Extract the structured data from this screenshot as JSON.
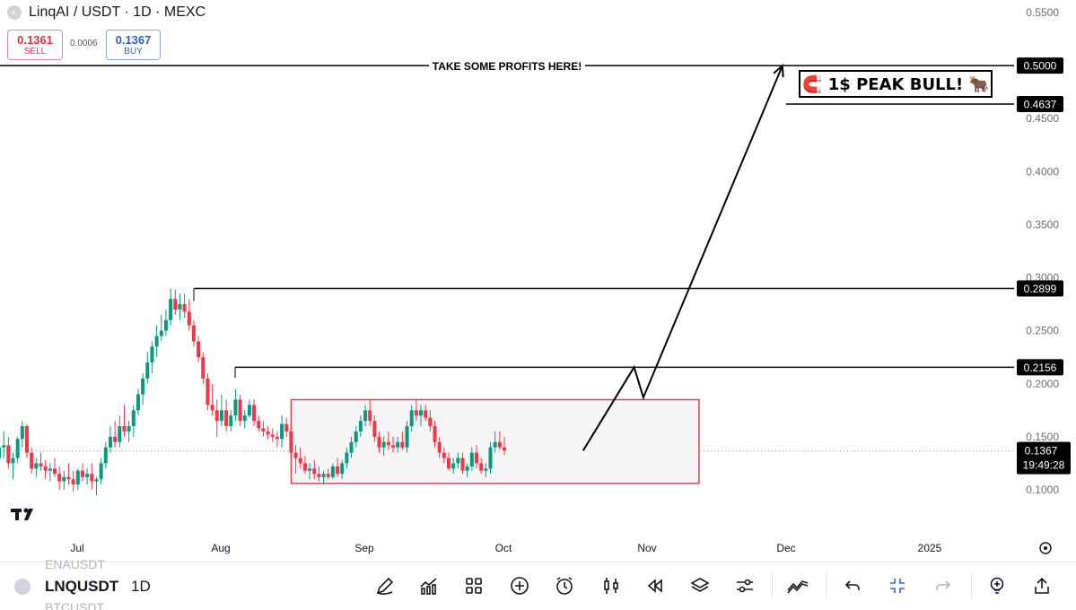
{
  "header": {
    "symbol_title": "LinqAI / USDT · 1D · MEXC",
    "sell_price": "0.1361",
    "sell_label": "SELL",
    "spread": "0.0006",
    "buy_price": "0.1367",
    "buy_label": "BUY"
  },
  "chart_data": {
    "type": "candlestick",
    "x_tick_labels": [
      "Jul",
      "Aug",
      "Sep",
      "Oct",
      "Nov",
      "Dec",
      "2025"
    ],
    "y_tick_labels": [
      "0.5500",
      "0.5000",
      "0.4500",
      "0.4000",
      "0.3500",
      "0.3000",
      "0.2500",
      "0.2000",
      "0.1500",
      "0.1000"
    ],
    "ylim": [
      0.0,
      0.55
    ],
    "current_price": "0.1367",
    "countdown": "19:49:28",
    "up_color": "#089981",
    "down_color": "#f23645",
    "candles": [
      [
        0.13,
        0.145,
        0.118,
        0.14
      ],
      [
        0.14,
        0.155,
        0.13,
        0.142
      ],
      [
        0.142,
        0.15,
        0.12,
        0.125
      ],
      [
        0.125,
        0.135,
        0.11,
        0.13
      ],
      [
        0.13,
        0.15,
        0.125,
        0.148
      ],
      [
        0.148,
        0.165,
        0.14,
        0.16
      ],
      [
        0.16,
        0.162,
        0.13,
        0.135
      ],
      [
        0.135,
        0.14,
        0.115,
        0.12
      ],
      [
        0.12,
        0.13,
        0.112,
        0.125
      ],
      [
        0.125,
        0.135,
        0.118,
        0.122
      ],
      [
        0.122,
        0.128,
        0.11,
        0.118
      ],
      [
        0.118,
        0.125,
        0.108,
        0.12
      ],
      [
        0.12,
        0.13,
        0.112,
        0.115
      ],
      [
        0.115,
        0.122,
        0.1,
        0.108
      ],
      [
        0.108,
        0.118,
        0.1,
        0.112
      ],
      [
        0.112,
        0.125,
        0.105,
        0.11
      ],
      [
        0.11,
        0.118,
        0.098,
        0.105
      ],
      [
        0.105,
        0.12,
        0.1,
        0.118
      ],
      [
        0.118,
        0.125,
        0.108,
        0.112
      ],
      [
        0.112,
        0.12,
        0.105,
        0.115
      ],
      [
        0.115,
        0.125,
        0.1,
        0.108
      ],
      [
        0.108,
        0.112,
        0.095,
        0.11
      ],
      [
        0.11,
        0.13,
        0.105,
        0.125
      ],
      [
        0.125,
        0.145,
        0.12,
        0.14
      ],
      [
        0.14,
        0.16,
        0.135,
        0.15
      ],
      [
        0.15,
        0.165,
        0.14,
        0.145
      ],
      [
        0.145,
        0.17,
        0.14,
        0.16
      ],
      [
        0.16,
        0.18,
        0.15,
        0.155
      ],
      [
        0.155,
        0.165,
        0.145,
        0.16
      ],
      [
        0.16,
        0.18,
        0.15,
        0.175
      ],
      [
        0.175,
        0.195,
        0.17,
        0.19
      ],
      [
        0.19,
        0.21,
        0.18,
        0.205
      ],
      [
        0.205,
        0.23,
        0.2,
        0.22
      ],
      [
        0.22,
        0.24,
        0.21,
        0.235
      ],
      [
        0.235,
        0.255,
        0.225,
        0.245
      ],
      [
        0.245,
        0.265,
        0.24,
        0.25
      ],
      [
        0.25,
        0.27,
        0.245,
        0.26
      ],
      [
        0.26,
        0.29,
        0.255,
        0.28
      ],
      [
        0.28,
        0.289,
        0.265,
        0.27
      ],
      [
        0.27,
        0.285,
        0.26,
        0.275
      ],
      [
        0.275,
        0.285,
        0.262,
        0.268
      ],
      [
        0.268,
        0.28,
        0.25,
        0.255
      ],
      [
        0.255,
        0.26,
        0.235,
        0.24
      ],
      [
        0.24,
        0.245,
        0.22,
        0.225
      ],
      [
        0.225,
        0.23,
        0.2,
        0.205
      ],
      [
        0.205,
        0.21,
        0.175,
        0.18
      ],
      [
        0.18,
        0.2,
        0.17,
        0.175
      ],
      [
        0.175,
        0.185,
        0.15,
        0.165
      ],
      [
        0.165,
        0.19,
        0.16,
        0.175
      ],
      [
        0.175,
        0.185,
        0.155,
        0.16
      ],
      [
        0.16,
        0.175,
        0.155,
        0.17
      ],
      [
        0.17,
        0.195,
        0.165,
        0.185
      ],
      [
        0.185,
        0.19,
        0.16,
        0.165
      ],
      [
        0.165,
        0.175,
        0.158,
        0.17
      ],
      [
        0.17,
        0.185,
        0.168,
        0.18
      ],
      [
        0.18,
        0.185,
        0.16,
        0.165
      ],
      [
        0.165,
        0.17,
        0.155,
        0.158
      ],
      [
        0.158,
        0.165,
        0.15,
        0.155
      ],
      [
        0.155,
        0.16,
        0.148,
        0.152
      ],
      [
        0.152,
        0.158,
        0.145,
        0.15
      ],
      [
        0.15,
        0.155,
        0.14,
        0.148
      ],
      [
        0.148,
        0.17,
        0.14,
        0.162
      ],
      [
        0.162,
        0.168,
        0.15,
        0.155
      ],
      [
        0.155,
        0.16,
        0.13,
        0.135
      ],
      [
        0.135,
        0.142,
        0.115,
        0.13
      ],
      [
        0.13,
        0.14,
        0.12,
        0.125
      ],
      [
        0.125,
        0.132,
        0.115,
        0.118
      ],
      [
        0.118,
        0.125,
        0.11,
        0.12
      ],
      [
        0.12,
        0.128,
        0.11,
        0.115
      ],
      [
        0.115,
        0.122,
        0.108,
        0.112
      ],
      [
        0.112,
        0.118,
        0.105,
        0.115
      ],
      [
        0.115,
        0.12,
        0.11,
        0.112
      ],
      [
        0.112,
        0.125,
        0.11,
        0.122
      ],
      [
        0.122,
        0.13,
        0.112,
        0.115
      ],
      [
        0.115,
        0.128,
        0.11,
        0.125
      ],
      [
        0.125,
        0.14,
        0.12,
        0.135
      ],
      [
        0.135,
        0.15,
        0.13,
        0.145
      ],
      [
        0.145,
        0.16,
        0.14,
        0.155
      ],
      [
        0.155,
        0.17,
        0.15,
        0.165
      ],
      [
        0.165,
        0.18,
        0.16,
        0.175
      ],
      [
        0.175,
        0.185,
        0.16,
        0.165
      ],
      [
        0.165,
        0.17,
        0.145,
        0.15
      ],
      [
        0.15,
        0.155,
        0.135,
        0.14
      ],
      [
        0.14,
        0.15,
        0.132,
        0.145
      ],
      [
        0.145,
        0.155,
        0.138,
        0.142
      ],
      [
        0.142,
        0.15,
        0.135,
        0.14
      ],
      [
        0.14,
        0.15,
        0.135,
        0.145
      ],
      [
        0.145,
        0.155,
        0.138,
        0.14
      ],
      [
        0.14,
        0.165,
        0.135,
        0.16
      ],
      [
        0.16,
        0.18,
        0.155,
        0.175
      ],
      [
        0.175,
        0.185,
        0.165,
        0.17
      ],
      [
        0.17,
        0.18,
        0.16,
        0.175
      ],
      [
        0.175,
        0.18,
        0.165,
        0.168
      ],
      [
        0.168,
        0.175,
        0.155,
        0.16
      ],
      [
        0.16,
        0.165,
        0.14,
        0.145
      ],
      [
        0.145,
        0.15,
        0.13,
        0.135
      ],
      [
        0.135,
        0.14,
        0.125,
        0.13
      ],
      [
        0.13,
        0.135,
        0.118,
        0.12
      ],
      [
        0.12,
        0.13,
        0.115,
        0.125
      ],
      [
        0.125,
        0.135,
        0.12,
        0.13
      ],
      [
        0.13,
        0.135,
        0.115,
        0.118
      ],
      [
        0.118,
        0.125,
        0.112,
        0.122
      ],
      [
        0.122,
        0.14,
        0.118,
        0.135
      ],
      [
        0.135,
        0.142,
        0.12,
        0.125
      ],
      [
        0.125,
        0.13,
        0.115,
        0.118
      ],
      [
        0.118,
        0.125,
        0.112,
        0.12
      ],
      [
        0.12,
        0.145,
        0.115,
        0.14
      ],
      [
        0.14,
        0.155,
        0.135,
        0.145
      ],
      [
        0.145,
        0.155,
        0.138,
        0.14
      ],
      [
        0.14,
        0.15,
        0.133,
        0.137
      ]
    ],
    "range_box": {
      "x_from_date": "Aug 14",
      "x_to_date": "Nov 10",
      "top": 0.185,
      "bottom": 0.106
    },
    "levels": [
      {
        "price": 0.2899,
        "label": "0.2899"
      },
      {
        "price": 0.2156,
        "label": "0.2156"
      },
      {
        "price": 0.5,
        "label": "0.5000",
        "annotation": "TAKE SOME PROFITS HERE!"
      },
      {
        "price": 0.4637,
        "label": "0.4637"
      }
    ],
    "projection_points": [
      {
        "date": "Oct 16",
        "price": 0.137
      },
      {
        "date": "Oct 27",
        "price": 0.2156
      },
      {
        "date": "Oct 29",
        "price": 0.187
      },
      {
        "date": "Nov 28",
        "price": 0.5
      }
    ],
    "callout": "🧲 1$ PEAK BULL! 🐂"
  },
  "toolbar": {
    "symbol": "LNQUSDT",
    "interval": "1D",
    "ghost_prev": "ENAUSDT",
    "ghost_next": "BTCUSDT"
  },
  "colors": {
    "accent": "#2962ff",
    "range_border": "#e04454",
    "range_fill": "#f5f5f5"
  }
}
